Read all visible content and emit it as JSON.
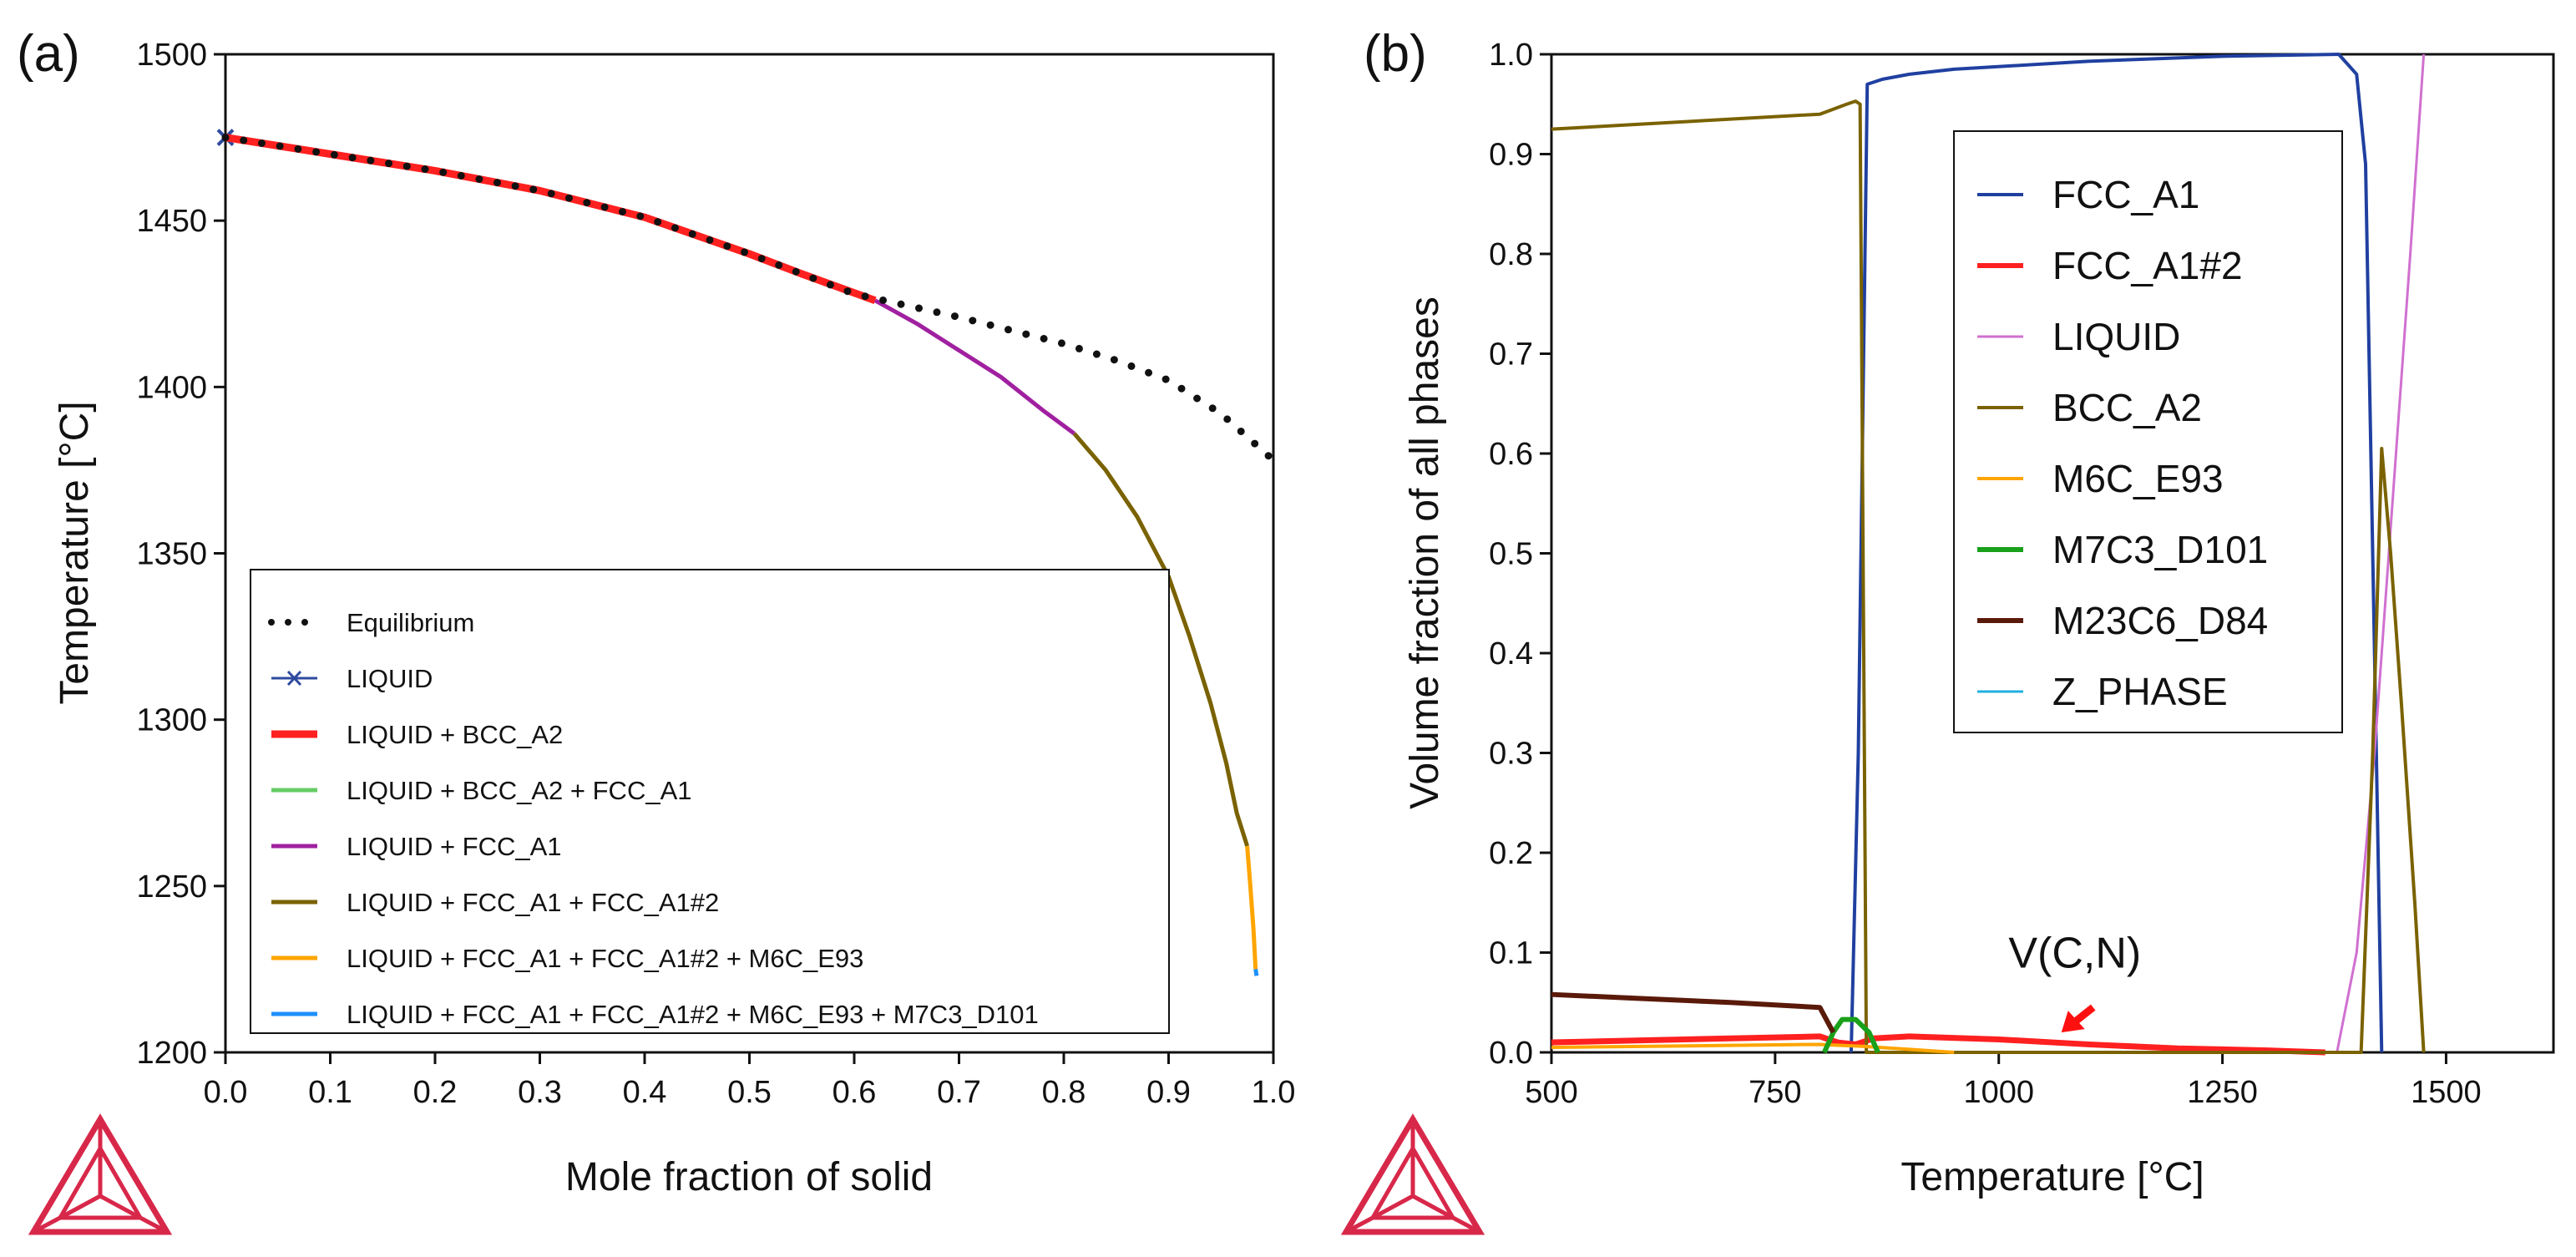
{
  "chart_data": [
    {
      "type": "line",
      "panel_label": "(a)",
      "xlabel": "Mole fraction of solid",
      "ylabel": "Temperature [°C]",
      "xlim": [
        0,
        1
      ],
      "ylim": [
        1200,
        1500
      ],
      "x_ticks": [
        0.0,
        0.1,
        0.2,
        0.3,
        0.4,
        0.5,
        0.6,
        0.7,
        0.8,
        0.9,
        1.0
      ],
      "x_tick_labels": [
        "0.0",
        "0.1",
        "0.2",
        "0.3",
        "0.4",
        "0.5",
        "0.6",
        "0.7",
        "0.8",
        "0.9",
        "1.0"
      ],
      "y_ticks": [
        1200,
        1250,
        1300,
        1350,
        1400,
        1450,
        1500
      ],
      "y_tick_labels": [
        "1200",
        "1250",
        "1300",
        "1350",
        "1400",
        "1450",
        "1500"
      ],
      "grid": false,
      "legend_position": "bottom-left",
      "series": [
        {
          "name": "Equilibrium",
          "color": "#111111",
          "style": "dotted",
          "x": [
            0.0,
            0.1,
            0.2,
            0.3,
            0.4,
            0.5,
            0.6,
            0.7,
            0.8,
            0.85,
            0.9,
            0.95,
            1.0
          ],
          "y": [
            1475,
            1470,
            1465,
            1459,
            1451,
            1440,
            1428,
            1421,
            1413,
            1408,
            1402,
            1392,
            1378
          ]
        },
        {
          "name": "LIQUID",
          "color": "#2e4a9e",
          "style": "marker",
          "x": [
            0.0
          ],
          "y": [
            1475
          ]
        },
        {
          "name": "LIQUID + BCC_A2",
          "color": "#ff2020",
          "style": "thick",
          "x": [
            0.0,
            0.1,
            0.2,
            0.3,
            0.4,
            0.5,
            0.55,
            0.62
          ],
          "y": [
            1475,
            1470,
            1465,
            1459,
            1451,
            1440,
            1434,
            1426
          ]
        },
        {
          "name": "LIQUID + BCC_A2 + FCC_A1",
          "color": "#66cc66",
          "style": "line",
          "x": [],
          "y": []
        },
        {
          "name": "LIQUID + FCC_A1",
          "color": "#a020a0",
          "style": "line",
          "x": [
            0.62,
            0.66,
            0.7,
            0.74,
            0.78,
            0.81
          ],
          "y": [
            1426,
            1419,
            1411,
            1403,
            1393,
            1386
          ]
        },
        {
          "name": "LIQUID + FCC_A1 + FCC_A1#2",
          "color": "#7a6200",
          "style": "line",
          "x": [
            0.81,
            0.84,
            0.87,
            0.9,
            0.92,
            0.94,
            0.955,
            0.965,
            0.975
          ],
          "y": [
            1386,
            1375,
            1361,
            1343,
            1325,
            1305,
            1287,
            1272,
            1262
          ]
        },
        {
          "name": "LIQUID + FCC_A1 + FCC_A1#2 + M6C_E93",
          "color": "#ffa500",
          "style": "line",
          "x": [
            0.975,
            0.978,
            0.981,
            0.983
          ],
          "y": [
            1262,
            1250,
            1237,
            1225
          ]
        },
        {
          "name": "LIQUID + FCC_A1 + FCC_A1#2 + M6C_E93 + M7C3_D101",
          "color": "#1e90ff",
          "style": "line",
          "x": [
            0.983,
            0.984
          ],
          "y": [
            1225,
            1223
          ]
        }
      ]
    },
    {
      "type": "line",
      "panel_label": "(b)",
      "xlabel": "Temperature [°C]",
      "ylabel": "Volume fraction of all phases",
      "xlim": [
        500,
        1620
      ],
      "ylim": [
        0,
        1
      ],
      "x_ticks": [
        500,
        750,
        1000,
        1250,
        1500
      ],
      "x_tick_labels": [
        "500",
        "750",
        "1000",
        "1250",
        "1500"
      ],
      "y_ticks": [
        0.0,
        0.1,
        0.2,
        0.3,
        0.4,
        0.5,
        0.6,
        0.7,
        0.8,
        0.9,
        1.0
      ],
      "y_tick_labels": [
        "0.0",
        "0.1",
        "0.2",
        "0.3",
        "0.4",
        "0.5",
        "0.6",
        "0.7",
        "0.8",
        "0.9",
        "1.0"
      ],
      "grid": false,
      "legend_position": "top-center",
      "annotation": {
        "text": "V(C,N)",
        "x": 1085,
        "y": 0.085,
        "arrow_to_x": 1070,
        "arrow_to_y": 0.02
      },
      "series": [
        {
          "name": "FCC_A1",
          "color": "#2040a0",
          "width": 4,
          "x": [
            835,
            843,
            853,
            870,
            900,
            950,
            1100,
            1250,
            1380,
            1400,
            1410,
            1420,
            1428
          ],
          "y": [
            0.0,
            0.3,
            0.97,
            0.975,
            0.98,
            0.985,
            0.993,
            0.998,
            1.0,
            0.98,
            0.89,
            0.4,
            0.0
          ]
        },
        {
          "name": "FCC_A1#2",
          "color": "#ff2020",
          "width": 7,
          "x": [
            500,
            600,
            700,
            800,
            820,
            840,
            860,
            900,
            1000,
            1100,
            1200,
            1300,
            1365
          ],
          "y": [
            0.01,
            0.012,
            0.014,
            0.016,
            0.01,
            0.008,
            0.014,
            0.016,
            0.013,
            0.008,
            0.004,
            0.002,
            0.0
          ]
        },
        {
          "name": "LIQUID",
          "color": "#d070d0",
          "width": 3,
          "x": [
            1378,
            1400,
            1420,
            1440,
            1460,
            1475
          ],
          "y": [
            0.0,
            0.1,
            0.3,
            0.55,
            0.8,
            1.0
          ]
        },
        {
          "name": "BCC_A2",
          "color": "#7a6200",
          "width": 4,
          "x": [
            500,
            600,
            700,
            800,
            815,
            830,
            840,
            845,
            852,
            1405,
            1418,
            1428,
            1438,
            1450,
            1465,
            1475
          ],
          "y": [
            0.925,
            0.93,
            0.935,
            0.94,
            0.945,
            0.95,
            0.953,
            0.95,
            0.0,
            0.0,
            0.3,
            0.605,
            0.5,
            0.35,
            0.15,
            0.0
          ]
        },
        {
          "name": "M6C_E93",
          "color": "#ffa500",
          "width": 4,
          "x": [
            500,
            700,
            800,
            850,
            900,
            950
          ],
          "y": [
            0.005,
            0.007,
            0.008,
            0.006,
            0.003,
            0.0
          ]
        },
        {
          "name": "M7C3_D101",
          "color": "#1aa01a",
          "width": 6,
          "x": [
            805,
            815,
            825,
            840,
            855,
            865
          ],
          "y": [
            0.0,
            0.02,
            0.033,
            0.033,
            0.02,
            0.0
          ]
        },
        {
          "name": "M23C6_D84",
          "color": "#5a1a0a",
          "width": 6,
          "x": [
            500,
            600,
            700,
            800,
            815
          ],
          "y": [
            0.058,
            0.054,
            0.05,
            0.045,
            0.02
          ]
        },
        {
          "name": "Z_PHASE",
          "color": "#20b0e0",
          "width": 3,
          "x": [],
          "y": []
        }
      ]
    }
  ]
}
